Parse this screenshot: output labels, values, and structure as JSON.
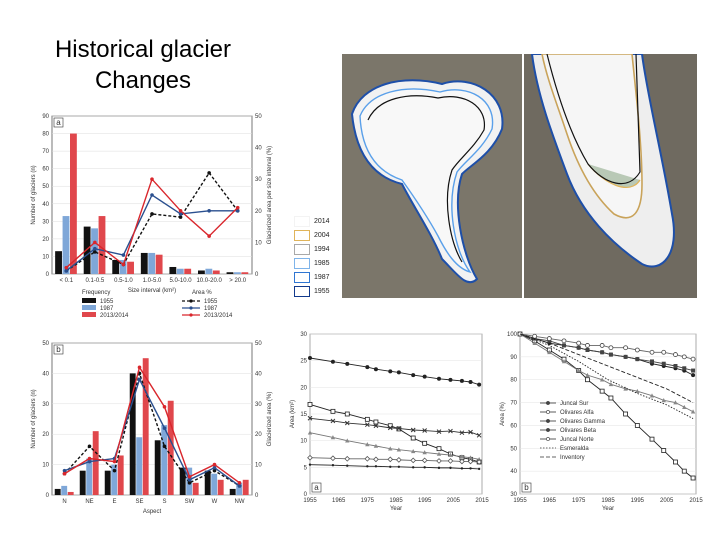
{
  "page": {
    "title_line1": "Historical glacier",
    "title_line2": "Changes"
  },
  "chart_data": [
    {
      "type": "bar",
      "panel_label": "a",
      "title": "",
      "xlabel": "Size interval (km²)",
      "ylabel": "Number of glaciers (n)",
      "y2label": "Glacierized area per size interval (%)",
      "ylim": [
        0,
        90
      ],
      "y2lim": [
        0,
        50
      ],
      "yticks": [
        0,
        10,
        20,
        30,
        40,
        50,
        60,
        70,
        80,
        90
      ],
      "y2ticks": [
        0,
        10,
        20,
        30,
        40,
        50
      ],
      "categories": [
        "< 0.1",
        "0.1-0.5",
        "0.5-1.0",
        "1.0-5.0",
        "5.0-10.0",
        "10.0-20.0",
        "> 20.0"
      ],
      "legend_left_title": "Frequency",
      "legend_right_title": "Area %",
      "series": [
        {
          "name": "1955",
          "kind": "bar",
          "color": "#111111",
          "values": [
            13,
            27,
            8,
            12,
            4,
            2,
            1
          ]
        },
        {
          "name": "1987",
          "kind": "bar",
          "color": "#7fa7d8",
          "values": [
            33,
            26,
            8,
            12,
            3,
            3,
            1
          ]
        },
        {
          "name": "2013/2014",
          "kind": "bar",
          "color": "#e0474c",
          "values": [
            80,
            33,
            7,
            11,
            3,
            2,
            1
          ]
        },
        {
          "name": "1955",
          "kind": "line",
          "axis": "y2",
          "color": "#111111",
          "dash": "3,2",
          "values": [
            1,
            7,
            3,
            19,
            18,
            32,
            20
          ]
        },
        {
          "name": "1987",
          "kind": "line",
          "axis": "y2",
          "color": "#2a4f8f",
          "dash": "",
          "values": [
            1,
            8,
            6,
            25,
            19,
            20,
            20
          ]
        },
        {
          "name": "2013/2014",
          "kind": "line",
          "axis": "y2",
          "color": "#d9262c",
          "dash": "",
          "values": [
            2,
            10,
            3,
            30,
            20,
            12,
            21
          ]
        }
      ]
    },
    {
      "type": "bar",
      "panel_label": "b",
      "title": "",
      "xlabel": "Aspect",
      "ylabel": "Number of glaciers (n)",
      "y2label": "Glacierized area (%)",
      "ylim": [
        0,
        50
      ],
      "y2lim": [
        0,
        50
      ],
      "yticks": [
        0,
        10,
        20,
        30,
        40,
        50
      ],
      "y2ticks": [
        0,
        10,
        20,
        30,
        40,
        50
      ],
      "categories": [
        "N",
        "NE",
        "E",
        "SE",
        "S",
        "SW",
        "W",
        "NW"
      ],
      "series": [
        {
          "name": "1955",
          "kind": "bar",
          "color": "#111111",
          "values": [
            2,
            8,
            8,
            40,
            18,
            9,
            8,
            2
          ]
        },
        {
          "name": "1987",
          "kind": "bar",
          "color": "#7fa7d8",
          "values": [
            3,
            12,
            10,
            19,
            23,
            9,
            7,
            4
          ]
        },
        {
          "name": "2013/2014",
          "kind": "bar",
          "color": "#e0474c",
          "values": [
            1,
            21,
            13,
            45,
            31,
            4,
            5,
            5
          ]
        },
        {
          "name": "1955",
          "kind": "line",
          "axis": "y2",
          "color": "#111111",
          "dash": "3,2",
          "values": [
            7,
            16,
            8,
            40,
            16,
            4,
            8,
            3
          ]
        },
        {
          "name": "1987",
          "kind": "line",
          "axis": "y2",
          "color": "#2a4f8f",
          "dash": "",
          "values": [
            8,
            11,
            12,
            38,
            22,
            5,
            9,
            3
          ]
        },
        {
          "name": "2013/2014",
          "kind": "line",
          "axis": "y2",
          "color": "#d9262c",
          "dash": "",
          "values": [
            7,
            12,
            11,
            42,
            29,
            6,
            10,
            4
          ]
        }
      ]
    },
    {
      "type": "line",
      "panel_label": "a",
      "title": "",
      "xlabel": "Year",
      "ylabel": "Area (km²)",
      "xlim": [
        1955,
        2015
      ],
      "ylim": [
        0,
        30
      ],
      "xticks": [
        1955,
        1965,
        1975,
        1985,
        1995,
        2005,
        2015
      ],
      "yticks": [
        0,
        5,
        10,
        15,
        20,
        25,
        30
      ],
      "series": [
        {
          "marker": "circle-filled",
          "x": [
            1955,
            1963,
            1968,
            1975,
            1978,
            1983,
            1986,
            1991,
            1995,
            2000,
            2004,
            2008,
            2011,
            2014
          ],
          "y": [
            25.5,
            24.8,
            24.4,
            23.8,
            23.4,
            23,
            22.8,
            22.3,
            22,
            21.6,
            21.4,
            21.2,
            21,
            20.5
          ]
        },
        {
          "marker": "square-open",
          "x": [
            1955,
            1963,
            1968,
            1975,
            1978,
            1983,
            1986,
            1991,
            1995,
            2000,
            2004,
            2008,
            2011,
            2014
          ],
          "y": [
            16.8,
            15.5,
            15,
            14,
            13.5,
            12.8,
            12.2,
            10.5,
            9.5,
            8.5,
            7.5,
            6.8,
            6.5,
            6
          ]
        },
        {
          "marker": "x",
          "x": [
            1955,
            1963,
            1968,
            1975,
            1978,
            1983,
            1986,
            1991,
            1995,
            2000,
            2004,
            2008,
            2011,
            2014
          ],
          "y": [
            14.2,
            13.7,
            13.3,
            13,
            12.8,
            12.4,
            12.3,
            12,
            11.9,
            11.7,
            11.8,
            11.5,
            11.6,
            11
          ]
        },
        {
          "marker": "triangle",
          "x": [
            1955,
            1963,
            1968,
            1975,
            1978,
            1983,
            1986,
            1991,
            1995,
            2000,
            2004,
            2008,
            2011,
            2014
          ],
          "y": [
            11.5,
            10.6,
            10,
            9.3,
            9,
            8.5,
            8.3,
            8,
            7.8,
            7.5,
            7.3,
            7,
            6.8,
            6.5
          ]
        },
        {
          "marker": "diamond-open",
          "x": [
            1955,
            1963,
            1968,
            1975,
            1978,
            1983,
            1986,
            1991,
            1995,
            2000,
            2004,
            2008,
            2011,
            2014
          ],
          "y": [
            6.8,
            6.7,
            6.6,
            6.6,
            6.5,
            6.5,
            6.4,
            6.3,
            6.3,
            6.2,
            6.2,
            6.1,
            6.1,
            6
          ]
        },
        {
          "marker": "circle-small",
          "x": [
            1955,
            1963,
            1968,
            1975,
            1978,
            1983,
            1986,
            1991,
            1995,
            2000,
            2004,
            2008,
            2011,
            2014
          ],
          "y": [
            5.5,
            5.4,
            5.3,
            5.2,
            5.2,
            5.1,
            5.1,
            5,
            5,
            4.9,
            4.9,
            4.8,
            4.8,
            4.7
          ]
        }
      ]
    },
    {
      "type": "line",
      "panel_label": "b",
      "title": "",
      "xlabel": "Year",
      "ylabel": "Area (%)",
      "xlim": [
        1955,
        2015
      ],
      "ylim": [
        30,
        100
      ],
      "xticks": [
        1955,
        1965,
        1975,
        1985,
        1995,
        2005,
        2015
      ],
      "yticks": [
        30,
        40,
        50,
        60,
        70,
        80,
        90,
        100
      ],
      "series": [
        {
          "name": "Juncal Sur",
          "marker": "circle-filled",
          "x": [
            1955,
            1960,
            1965,
            1970,
            1975,
            1978,
            1983,
            1986,
            1991,
            1995,
            2000,
            2004,
            2008,
            2011,
            2014
          ],
          "y": [
            100,
            98,
            96,
            95,
            94,
            93,
            92,
            91,
            90,
            89,
            87,
            86,
            85,
            84,
            82
          ]
        },
        {
          "name": "Olivares Alfa",
          "marker": "square-open",
          "x": [
            1955,
            1960,
            1965,
            1970,
            1975,
            1978,
            1983,
            1986,
            1991,
            1995,
            2000,
            2004,
            2008,
            2011,
            2014
          ],
          "y": [
            100,
            97,
            93,
            89,
            84,
            80,
            75,
            72,
            65,
            60,
            54,
            49,
            44,
            40,
            37
          ]
        },
        {
          "name": "Olivares Gamma",
          "marker": "square-filled",
          "x": [
            1955,
            1960,
            1965,
            1970,
            1975,
            1978,
            1983,
            1986,
            1991,
            1995,
            2000,
            2004,
            2008,
            2011,
            2014
          ],
          "y": [
            100,
            98,
            97,
            95,
            94,
            93,
            92,
            91,
            90,
            89,
            88,
            87,
            86,
            85,
            84
          ]
        },
        {
          "name": "Olivares Beta",
          "marker": "triangle",
          "x": [
            1955,
            1960,
            1965,
            1970,
            1975,
            1978,
            1983,
            1986,
            1991,
            1995,
            2000,
            2004,
            2008,
            2011,
            2014
          ],
          "y": [
            100,
            96,
            92,
            88,
            84,
            82,
            80,
            78,
            76,
            75,
            73,
            71,
            70,
            68,
            66
          ]
        },
        {
          "name": "Juncal Norte",
          "marker": "circle-open",
          "x": [
            1955,
            1960,
            1965,
            1970,
            1975,
            1978,
            1983,
            1986,
            1991,
            1995,
            2000,
            2004,
            2008,
            2011,
            2014
          ],
          "y": [
            100,
            99,
            98,
            97,
            96,
            95,
            95,
            94,
            94,
            93,
            92,
            92,
            91,
            90,
            89
          ]
        },
        {
          "name": "Esmeralda",
          "marker": "none",
          "x": [
            1955,
            1965,
            1975,
            1985,
            1995,
            2005,
            2014
          ],
          "y": [
            100,
            95,
            88,
            80,
            74,
            69,
            63
          ]
        },
        {
          "name": "Inventory",
          "marker": "none",
          "x": [
            1955,
            1965,
            1975,
            1985,
            1995,
            2005,
            2014
          ],
          "y": [
            100,
            96,
            91,
            86,
            81,
            76,
            70
          ]
        }
      ]
    }
  ],
  "imagery_legend": {
    "years": [
      "2014",
      "2004",
      "1994",
      "1985",
      "1987",
      "1955"
    ],
    "colors": [
      "#f3f3f3",
      "#e0b45a",
      "#a9a9a9",
      "#7fb4ea",
      "#2f76d2",
      "#123a8c"
    ]
  }
}
